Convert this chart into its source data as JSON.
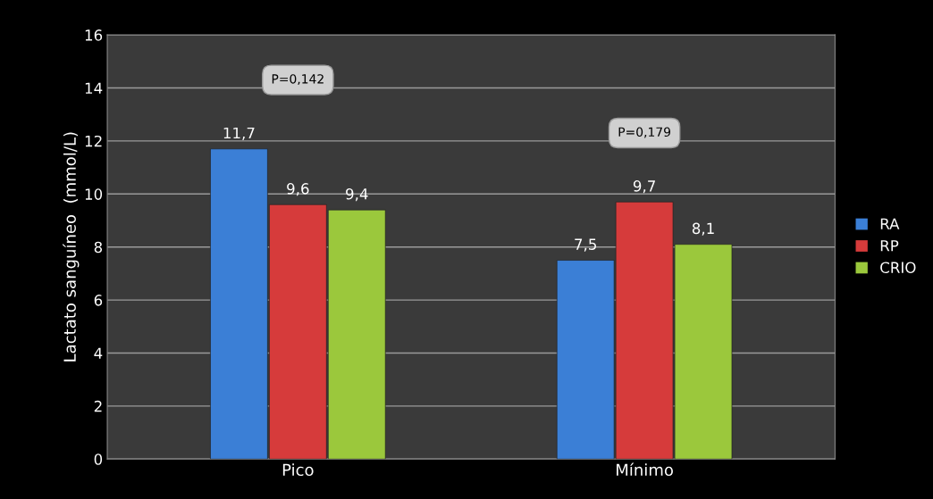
{
  "chart_data": {
    "type": "bar",
    "ylabel": "Lactato sanguíneo  (mmol/L)",
    "categories": [
      "Pico",
      "Mínimo"
    ],
    "series": [
      {
        "name": "RA",
        "color": "#3b7fd6",
        "values": [
          11.7,
          7.5
        ],
        "value_labels": [
          "11,7",
          "7,5"
        ]
      },
      {
        "name": "RP",
        "color": "#d63b3b",
        "values": [
          9.6,
          9.7
        ],
        "value_labels": [
          "9,6",
          "9,7"
        ]
      },
      {
        "name": "CRIO",
        "color": "#9bc83c",
        "values": [
          9.4,
          8.1
        ],
        "value_labels": [
          "9,4",
          "8,1"
        ]
      }
    ],
    "ylim": [
      0,
      16
    ],
    "yticks": [
      0,
      2,
      4,
      6,
      8,
      10,
      12,
      14,
      16
    ],
    "grid": "y",
    "legend": "right",
    "annotations": [
      "P=0,142",
      "P=0,179"
    ]
  }
}
